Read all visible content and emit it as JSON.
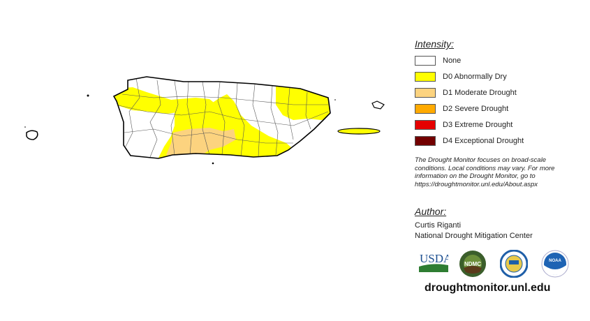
{
  "legend": {
    "title": "Intensity:",
    "items": [
      {
        "label": "None",
        "color": "#ffffff"
      },
      {
        "label": "D0 Abnormally Dry",
        "color": "#ffff00"
      },
      {
        "label": "D1 Moderate Drought",
        "color": "#fcd37f"
      },
      {
        "label": "D2 Severe Drought",
        "color": "#ffaa00"
      },
      {
        "label": "D3 Extreme Drought",
        "color": "#e60000"
      },
      {
        "label": "D4 Exceptional Drought",
        "color": "#730000"
      }
    ]
  },
  "note": "The Drought Monitor focuses on broad-scale conditions. Local conditions may vary. For more information on the Drought Monitor, go to https://droughtmonitor.unl.edu/About.aspx",
  "author": {
    "title": "Author:",
    "name": "Curtis Riganti",
    "org": "National Drought Mitigation Center"
  },
  "logos": {
    "usda": "USDA",
    "ndmc": "NDMC",
    "doc": "",
    "noaa": "NOAA"
  },
  "url": "droughtmonitor.unl.edu",
  "map": {
    "region": "Puerto Rico",
    "categories_shown": [
      "None",
      "D0",
      "D1"
    ]
  }
}
